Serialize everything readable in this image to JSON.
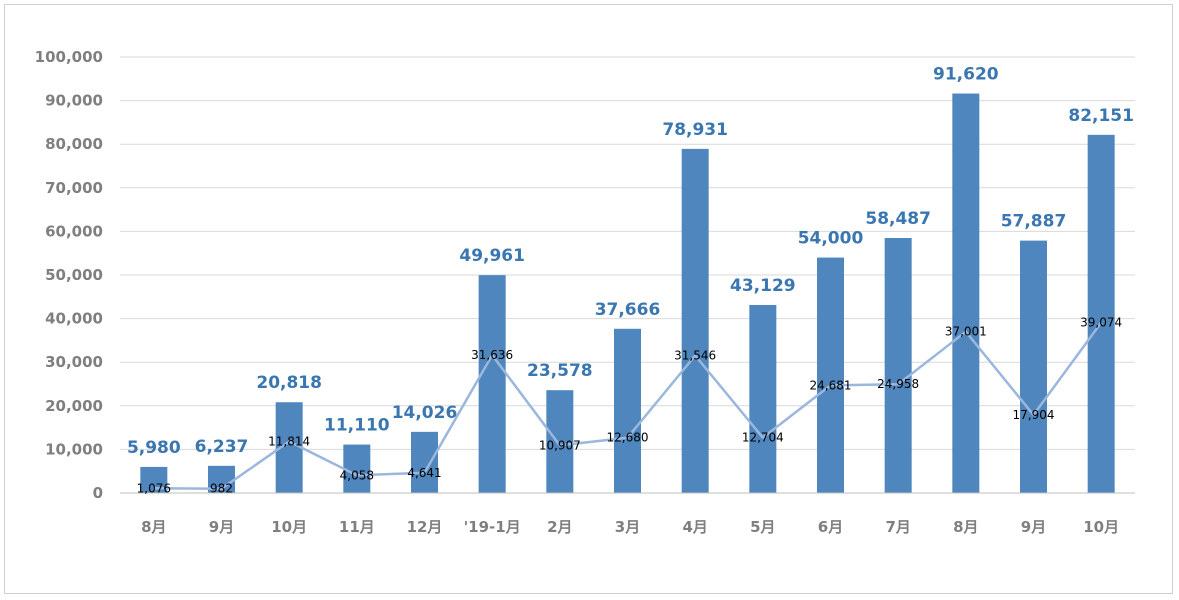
{
  "chart_data": {
    "type": "bar",
    "categories": [
      "8月",
      "9月",
      "10月",
      "11月",
      "12月",
      "'19-1月",
      "2月",
      "3月",
      "4月",
      "5月",
      "6月",
      "7月",
      "8月",
      "9月",
      "10月"
    ],
    "series": [
      {
        "type": "bar",
        "values": [
          5980,
          6237,
          20818,
          11110,
          14026,
          49961,
          23578,
          37666,
          78931,
          43129,
          54000,
          58487,
          91620,
          57887,
          82151
        ],
        "labels": [
          "5,980",
          "6,237",
          "20,818",
          "11,110",
          "14,026",
          "49,961",
          "23,578",
          "37,666",
          "78,931",
          "43,129",
          "54,000",
          "58,487",
          "91,620",
          "57,887",
          "82,151"
        ],
        "color": "#4e86bd",
        "label_color": "#3a76b0"
      },
      {
        "type": "line",
        "values": [
          1076,
          982,
          11814,
          4058,
          4641,
          31636,
          10907,
          12680,
          31546,
          12704,
          24681,
          24958,
          37001,
          17904,
          39074
        ],
        "labels": [
          "1,076",
          "982",
          "11,814",
          "4,058",
          "4,641",
          "31,636",
          "10,907",
          "12,680",
          "31,546",
          "12,704",
          "24,681",
          "24,958",
          "37,001",
          "17,904",
          "39,074"
        ],
        "color": "#9bb7dd"
      }
    ],
    "ylim": [
      0,
      100000
    ],
    "yticks": [
      "0",
      "10,000",
      "20,000",
      "30,000",
      "40,000",
      "50,000",
      "60,000",
      "70,000",
      "80,000",
      "90,000",
      "100,000"
    ],
    "grid": true,
    "title": "",
    "xlabel": "",
    "ylabel": "",
    "gridline_color": "#d9d9d9",
    "axis_color": "#bfbfbf"
  }
}
